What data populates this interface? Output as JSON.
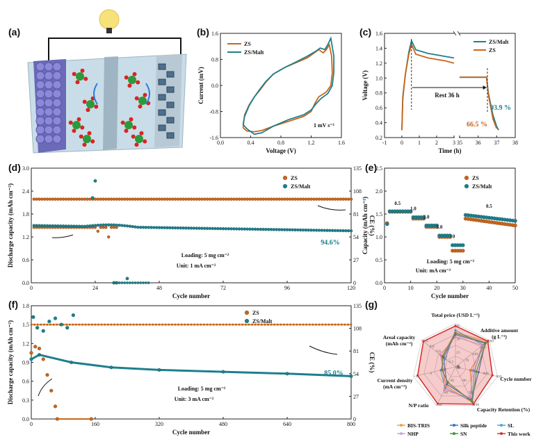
{
  "colors": {
    "zs": "#c8651b",
    "malt": "#1d7f8c",
    "zs_light": "#f2a65a",
    "malt_light": "#5db3c4"
  },
  "panels": {
    "a": {
      "label": "(a)"
    },
    "b": {
      "label": "(b)"
    },
    "c": {
      "label": "(c)"
    },
    "d": {
      "label": "(d)"
    },
    "e": {
      "label": "(e)"
    },
    "f": {
      "label": "(f)"
    },
    "g": {
      "label": "(g)"
    }
  },
  "chart_data": [
    {
      "id": "b",
      "type": "line",
      "xlabel": "Voltage (V)",
      "ylabel": "Current (mV)",
      "xlim": [
        0,
        1.6
      ],
      "ylim": [
        -1.6,
        1.6
      ],
      "xticks": [
        "0.0",
        "0.4",
        "0.8",
        "1.2",
        "1.6"
      ],
      "yticks": [
        "-1.6",
        "-0.8",
        "0.0",
        "0.8",
        "1.6"
      ],
      "annotation": "1 mV s⁻¹",
      "series": [
        {
          "name": "ZS",
          "points": [
            [
              0.3,
              -1.3
            ],
            [
              0.35,
              -1.4
            ],
            [
              0.45,
              -1.42
            ],
            [
              0.55,
              -1.38
            ],
            [
              0.7,
              -1.25
            ],
            [
              0.9,
              -1.1
            ],
            [
              1.1,
              -0.95
            ],
            [
              1.2,
              -0.8
            ],
            [
              1.25,
              -0.55
            ],
            [
              1.3,
              -0.35
            ],
            [
              1.4,
              -0.2
            ],
            [
              1.46,
              0.0
            ],
            [
              1.48,
              0.4
            ],
            [
              1.47,
              0.9
            ],
            [
              1.44,
              1.25
            ],
            [
              1.4,
              1.1
            ],
            [
              1.36,
              1.0
            ],
            [
              1.3,
              1.1
            ],
            [
              1.24,
              1.0
            ],
            [
              1.15,
              0.85
            ],
            [
              1.0,
              0.7
            ],
            [
              0.85,
              0.55
            ],
            [
              0.7,
              0.35
            ],
            [
              0.6,
              0.1
            ],
            [
              0.52,
              -0.15
            ],
            [
              0.45,
              -0.35
            ],
            [
              0.38,
              -0.6
            ],
            [
              0.32,
              -0.9
            ],
            [
              0.3,
              -1.3
            ]
          ]
        },
        {
          "name": "ZS/Malt",
          "points": [
            [
              0.3,
              -1.2
            ],
            [
              0.35,
              -1.33
            ],
            [
              0.45,
              -1.5
            ],
            [
              0.55,
              -1.45
            ],
            [
              0.7,
              -1.25
            ],
            [
              0.9,
              -1.05
            ],
            [
              1.1,
              -0.9
            ],
            [
              1.2,
              -0.75
            ],
            [
              1.27,
              -0.55
            ],
            [
              1.33,
              -0.4
            ],
            [
              1.42,
              -0.25
            ],
            [
              1.48,
              0.0
            ],
            [
              1.5,
              0.4
            ],
            [
              1.5,
              0.9
            ],
            [
              1.46,
              1.45
            ],
            [
              1.42,
              1.25
            ],
            [
              1.38,
              1.1
            ],
            [
              1.32,
              1.15
            ],
            [
              1.26,
              1.05
            ],
            [
              1.15,
              0.9
            ],
            [
              1.0,
              0.72
            ],
            [
              0.85,
              0.55
            ],
            [
              0.7,
              0.35
            ],
            [
              0.6,
              0.12
            ],
            [
              0.52,
              -0.12
            ],
            [
              0.45,
              -0.35
            ],
            [
              0.38,
              -0.62
            ],
            [
              0.32,
              -0.95
            ],
            [
              0.3,
              -1.2
            ]
          ]
        }
      ]
    },
    {
      "id": "c",
      "type": "line",
      "xlabel": "Time (h)",
      "ylabel": "Voltage (V)",
      "ylim": [
        0.2,
        1.6
      ],
      "yticks": [
        "0.2",
        "0.4",
        "0.6",
        "0.8",
        "1.0",
        "1.2",
        "1.4",
        "1.6"
      ],
      "xticks_left": [
        "-1",
        "0",
        "1",
        "2",
        "3"
      ],
      "xticks_right": [
        "35",
        "36",
        "37",
        "38"
      ],
      "annotations": [
        "Rest 36 h",
        "93.9 %",
        "66.5 %"
      ],
      "series": [
        {
          "name": "ZS/Malt",
          "left": [
            [
              0,
              0.3
            ],
            [
              0.05,
              0.75
            ],
            [
              0.2,
              1.05
            ],
            [
              0.4,
              1.35
            ],
            [
              0.55,
              1.5
            ],
            [
              0.8,
              1.38
            ],
            [
              1.5,
              1.33
            ],
            [
              2.5,
              1.29
            ],
            [
              3,
              1.27
            ]
          ],
          "right": [
            [
              35,
              1.01
            ],
            [
              36,
              1.01
            ],
            [
              36.45,
              1.01
            ],
            [
              36.55,
              0.8
            ],
            [
              36.8,
              0.5
            ],
            [
              37.0,
              0.35
            ],
            [
              37.1,
              0.3
            ]
          ]
        },
        {
          "name": "ZS",
          "left": [
            [
              0,
              0.3
            ],
            [
              0.05,
              0.72
            ],
            [
              0.2,
              1.05
            ],
            [
              0.4,
              1.32
            ],
            [
              0.55,
              1.45
            ],
            [
              0.8,
              1.32
            ],
            [
              1.5,
              1.27
            ],
            [
              2.5,
              1.23
            ],
            [
              3,
              1.2
            ]
          ],
          "right": [
            [
              35,
              1.01
            ],
            [
              36,
              1.01
            ],
            [
              36.45,
              1.01
            ],
            [
              36.55,
              0.78
            ],
            [
              36.8,
              0.45
            ],
            [
              37.0,
              0.32
            ]
          ]
        }
      ]
    },
    {
      "id": "d",
      "type": "scatter",
      "xlabel": "Cycle number",
      "ylabel": "Discharge capacity (mAh cm⁻²)",
      "ylabel_right": "CE (%)",
      "xlim": [
        0,
        120
      ],
      "ylim": [
        0,
        3.0
      ],
      "ylim_right": [
        0,
        135
      ],
      "xticks": [
        "0",
        "24",
        "48",
        "72",
        "96",
        "120"
      ],
      "yticks": [
        "0.0",
        "0.6",
        "1.2",
        "1.8",
        "2.4",
        "3.0"
      ],
      "yticks_right": [
        "0",
        "27",
        "54",
        "81",
        "108",
        "135"
      ],
      "annotations": [
        "Loading: 5 mg cm⁻²",
        "Unit: 1 mA cm⁻²",
        "94.6%"
      ],
      "series": [
        {
          "name": "ZS",
          "capacity": {
            "x_end": 32,
            "start": 1.45,
            "end": 1.45,
            "spikes": [
              [
                25,
                1.35
              ],
              [
                29,
                1.2
              ]
            ]
          },
          "ce": {
            "x_end": 120,
            "value": 98.5
          }
        },
        {
          "name": "ZS/Malt",
          "capacity": {
            "x_end": 120,
            "start": 1.5,
            "end": 1.36,
            "peak": [
              [
                30,
                1.55
              ]
            ]
          },
          "ce": {
            "outliers": [
              [
                23,
                100
              ],
              [
                24,
                120
              ],
              [
                31,
                0
              ],
              [
                32,
                0
              ],
              [
                36,
                5
              ]
            ]
          }
        }
      ]
    },
    {
      "id": "e",
      "type": "scatter",
      "xlabel": "Cycle number",
      "ylabel": "Capacity (mAh cm⁻²)",
      "xlim": [
        0,
        50
      ],
      "ylim": [
        0,
        2.5
      ],
      "xticks": [
        "0",
        "10",
        "20",
        "30",
        "40",
        "50"
      ],
      "yticks": [
        "0.0",
        "0.5",
        "1.0",
        "1.5",
        "2.0",
        "2.5"
      ],
      "rate_labels": [
        "0.5",
        "1.0",
        "2.0",
        "5.0",
        "10",
        "0.5"
      ],
      "annotations": [
        "Loading: 5 mg cm⁻²",
        "Unit: mA cm⁻²"
      ],
      "series": [
        {
          "name": "ZS",
          "steps": [
            [
              1,
              5,
              1.3
            ],
            [
              2,
              10,
              1.55
            ],
            [
              11,
              15,
              1.4
            ],
            [
              16,
              20,
              1.22
            ],
            [
              21,
              25,
              1.0
            ],
            [
              26,
              30,
              0.7
            ],
            [
              31,
              50,
              1.4,
              1.25
            ]
          ]
        },
        {
          "name": "ZS/Malt",
          "steps": [
            [
              1,
              5,
              1.28
            ],
            [
              2,
              10,
              1.56
            ],
            [
              11,
              15,
              1.43
            ],
            [
              16,
              20,
              1.25
            ],
            [
              21,
              25,
              1.03
            ],
            [
              26,
              30,
              0.82
            ],
            [
              31,
              50,
              1.48,
              1.35
            ]
          ]
        }
      ]
    },
    {
      "id": "f",
      "type": "scatter",
      "xlabel": "Cycle number",
      "ylabel": "Discharge capacity (mAh cm⁻²)",
      "ylabel_right": "CE (%)",
      "xlim": [
        0,
        800
      ],
      "ylim": [
        0,
        1.8
      ],
      "ylim_right": [
        0,
        135
      ],
      "xticks": [
        "0",
        "160",
        "320",
        "480",
        "640",
        "800"
      ],
      "yticks": [
        "0.0",
        "0.3",
        "0.6",
        "0.9",
        "1.2",
        "1.5",
        "1.8"
      ],
      "yticks_right": [
        "0",
        "27",
        "54",
        "81",
        "108",
        "135"
      ],
      "annotations": [
        "Loading: 5 mg cm⁻²",
        "Unit: 3 mA cm⁻²",
        "85.0%"
      ],
      "series": [
        {
          "name": "ZS",
          "capacity": [
            [
              0,
              1.05
            ],
            [
              10,
              1.15
            ],
            [
              20,
              1.12
            ],
            [
              30,
              0.95
            ],
            [
              40,
              0.7
            ],
            [
              50,
              0.45
            ],
            [
              60,
              0.2
            ],
            [
              65,
              0.0
            ],
            [
              150,
              0.0
            ]
          ],
          "ce": {
            "value": 1.5
          }
        },
        {
          "name": "ZS/Malt",
          "capacity": [
            [
              0,
              0.95
            ],
            [
              20,
              1.02
            ],
            [
              100,
              0.9
            ],
            [
              200,
              0.82
            ],
            [
              320,
              0.78
            ],
            [
              480,
              0.75
            ],
            [
              640,
              0.72
            ],
            [
              800,
              0.68
            ]
          ],
          "ce": {
            "scatter": [
              [
                5,
                1.62
              ],
              [
                15,
                1.45
              ],
              [
                30,
                1.4
              ],
              [
                45,
                1.55
              ],
              [
                60,
                1.6
              ],
              [
                75,
                1.5
              ],
              [
                90,
                1.45
              ],
              [
                105,
                1.65
              ]
            ]
          }
        }
      ]
    },
    {
      "id": "g",
      "type": "radar",
      "axes": [
        {
          "label": "Total price (USD L⁻¹)",
          "ticks": [
            "0",
            "15",
            "30",
            "45"
          ]
        },
        {
          "label": "Additive amount (g L⁻¹)",
          "ticks": [
            "0",
            "70",
            "140",
            "210",
            "280"
          ]
        },
        {
          "label": "Cycle number",
          "ticks": [
            "0",
            "300",
            "600",
            "900"
          ]
        },
        {
          "label": "Capacity Retention (%)",
          "ticks": [
            "70",
            "80",
            "90",
            "100"
          ]
        },
        {
          "label": "N/P ratio",
          "ticks": [
            "0",
            "30",
            "60",
            "90"
          ]
        },
        {
          "label": "Current density (mA cm⁻²)",
          "ticks": [
            "0",
            "2",
            "4",
            "6"
          ]
        },
        {
          "label": "Areal capacity (mAh cm⁻²)",
          "ticks": [
            "0",
            "0.2",
            "0.4",
            "0.6",
            "0.8",
            "1.0"
          ]
        }
      ],
      "series": [
        {
          "name": "BIS-TRIS",
          "color": "#f0a040",
          "r": [
            0.8,
            0.95,
            0.35,
            0.92,
            0.5,
            0.3,
            0.4
          ]
        },
        {
          "name": "Silk peptide",
          "color": "#3b6fc4",
          "r": [
            0.75,
            0.88,
            0.55,
            0.85,
            0.45,
            0.25,
            0.35
          ]
        },
        {
          "name": "SL",
          "color": "#49a9d8",
          "r": [
            0.85,
            0.82,
            0.45,
            0.88,
            0.55,
            0.35,
            0.3
          ]
        },
        {
          "name": "NHP",
          "color": "#c9a8d8",
          "r": [
            0.7,
            0.8,
            0.4,
            0.8,
            0.6,
            0.28,
            0.45
          ]
        },
        {
          "name": "SN",
          "color": "#3a9a3a",
          "r": [
            0.78,
            0.9,
            0.5,
            0.9,
            0.4,
            0.32,
            0.38
          ]
        },
        {
          "name": "This work",
          "color": "#d8322e",
          "r": [
            0.95,
            0.96,
            0.88,
            0.96,
            0.95,
            0.9,
            0.95
          ]
        }
      ]
    }
  ]
}
